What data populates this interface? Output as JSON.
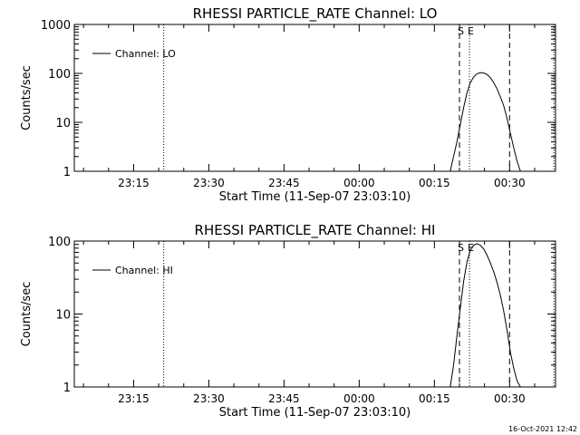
{
  "footer_timestamp": "16-Oct-2021 12:42",
  "chart_data": [
    {
      "type": "line",
      "title": "RHESSI PARTICLE_RATE Channel: LO",
      "xlabel": "Start Time (11-Sep-07 23:03:10)",
      "ylabel": "Counts/sec",
      "yscale": "log",
      "ylim": [
        1,
        1000
      ],
      "xlim": [
        "23:03:10",
        "00:39:10"
      ],
      "xticks": [
        "23:15",
        "23:30",
        "23:45",
        "00:00",
        "00:15",
        "00:30"
      ],
      "yticks": [
        "1",
        "10",
        "100",
        "1000"
      ],
      "legend": {
        "label": "Channel: LO",
        "position": "top-left"
      },
      "markers": [
        {
          "time": "23:21:00",
          "style": "dotted"
        },
        {
          "time": "00:20:00",
          "style": "dashed",
          "label": "S"
        },
        {
          "time": "00:22:00",
          "style": "dotted",
          "label": "E"
        },
        {
          "time": "00:30:00",
          "style": "dashed"
        },
        {
          "time": "00:38:50",
          "style": "dotted"
        }
      ],
      "series": [
        {
          "name": "Channel: LO",
          "x": [
            "00:18:10",
            "00:18:50",
            "00:19:30",
            "00:20:10",
            "00:20:50",
            "00:21:30",
            "00:22:10",
            "00:22:50",
            "00:23:30",
            "00:24:10",
            "00:24:50",
            "00:25:30",
            "00:26:10",
            "00:26:50",
            "00:27:30",
            "00:28:10",
            "00:28:50",
            "00:29:30",
            "00:30:10",
            "00:30:50",
            "00:31:30",
            "00:32:10"
          ],
          "y": [
            1,
            2,
            4,
            9,
            20,
            40,
            65,
            85,
            98,
            104,
            102,
            95,
            82,
            65,
            48,
            33,
            22,
            12,
            6,
            3,
            1.6,
            1
          ]
        }
      ]
    },
    {
      "type": "line",
      "title": "RHESSI PARTICLE_RATE Channel: HI",
      "xlabel": "Start Time (11-Sep-07 23:03:10)",
      "ylabel": "Counts/sec",
      "yscale": "log",
      "ylim": [
        1,
        100
      ],
      "xlim": [
        "23:03:10",
        "00:39:10"
      ],
      "xticks": [
        "23:15",
        "23:30",
        "23:45",
        "00:00",
        "00:15",
        "00:30"
      ],
      "yticks": [
        "1",
        "10",
        "100"
      ],
      "legend": {
        "label": "Channel: HI",
        "position": "top-left"
      },
      "markers": [
        {
          "time": "23:21:00",
          "style": "dotted"
        },
        {
          "time": "00:20:00",
          "style": "dashed",
          "label": "S"
        },
        {
          "time": "00:22:00",
          "style": "dotted",
          "label": "E"
        },
        {
          "time": "00:30:00",
          "style": "dashed"
        },
        {
          "time": "00:38:50",
          "style": "dotted"
        }
      ],
      "series": [
        {
          "name": "Channel: HI",
          "x": [
            "00:18:10",
            "00:18:50",
            "00:19:30",
            "00:20:10",
            "00:20:50",
            "00:21:30",
            "00:22:10",
            "00:22:50",
            "00:23:30",
            "00:24:10",
            "00:24:50",
            "00:25:30",
            "00:26:10",
            "00:26:50",
            "00:27:30",
            "00:28:10",
            "00:28:50",
            "00:29:30",
            "00:30:10",
            "00:30:50",
            "00:31:30",
            "00:32:10"
          ],
          "y": [
            1,
            2,
            5,
            12,
            28,
            52,
            75,
            88,
            92,
            88,
            78,
            64,
            50,
            38,
            27,
            18,
            11,
            6,
            3,
            1.8,
            1.2,
            1
          ]
        }
      ]
    }
  ]
}
